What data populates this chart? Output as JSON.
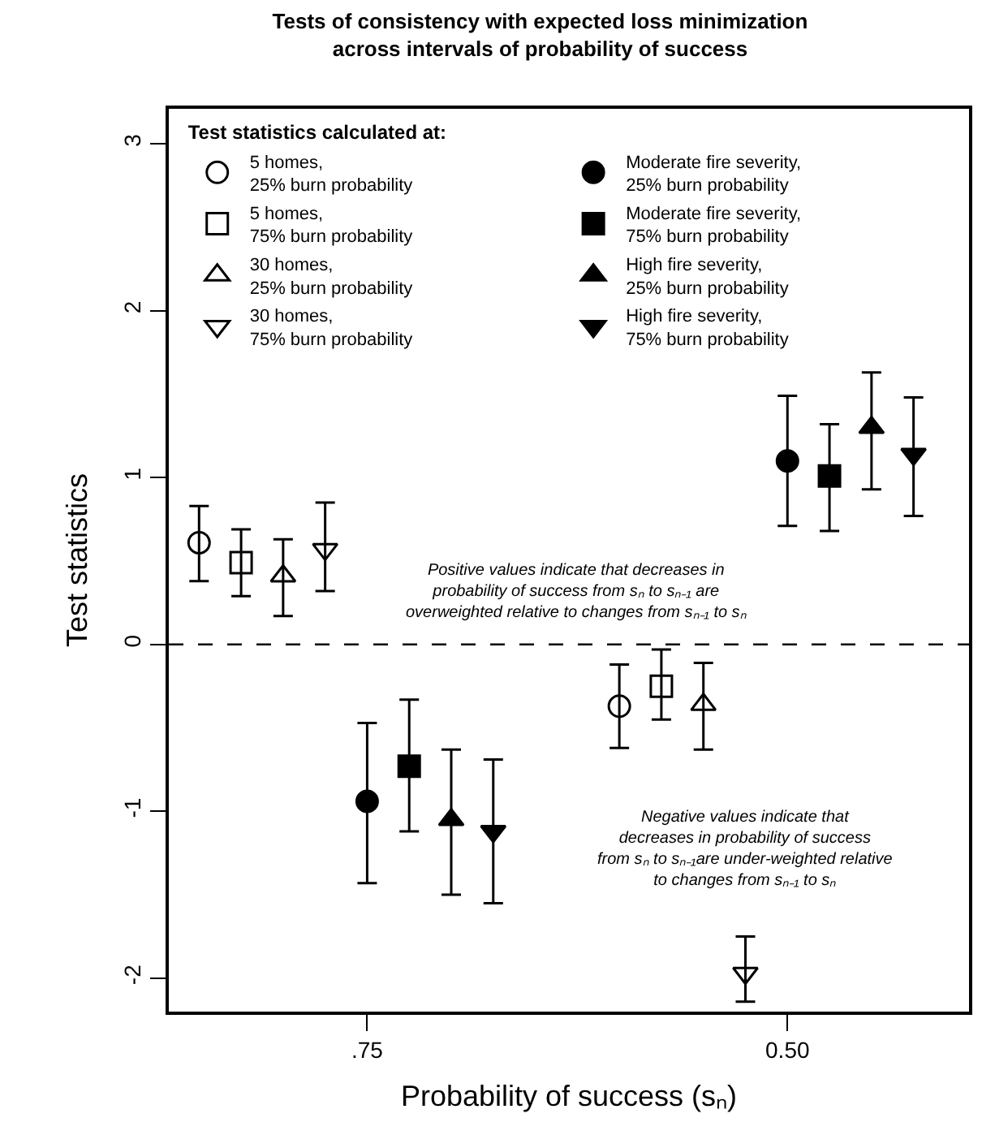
{
  "chart_data": {
    "type": "scatter",
    "title": "Tests of consistency with expected loss minimization\nacross intervals of probability of success",
    "xlabel": "Probability of success (sₙ)",
    "ylabel": "Test statistics",
    "legend_title": "Test statistics calculated at:",
    "xlim": [
      0.868,
      0.392
    ],
    "xticks": [
      {
        "value": 0.75,
        "label": ".75"
      },
      {
        "value": 0.5,
        "label": "0.50"
      }
    ],
    "ylim": [
      -2.2,
      3.21
    ],
    "yticks": [
      -2,
      -1,
      0,
      1,
      2,
      3
    ],
    "legend": "top",
    "ref_lines": [
      {
        "axis": "y",
        "value": 0,
        "label": null,
        "color": "#000000",
        "line_style": "dashed"
      }
    ],
    "annotations": [
      "Positive values indicate that decreases in\nprobability of success from sₙ to sₙ₋₁ are\noverweighted relative to changes from sₙ₋₁ to sₙ",
      "Negative values indicate that\ndecreases in probability of success\nfrom sₙ to sₙ₋₁are under-weighted relative\nto changes from sₙ₋₁ to sₙ"
    ],
    "series": [
      {
        "name": "5 homes,\n25% burn probability",
        "color": "#000000",
        "marker": "circle-open",
        "x": [
          0.85,
          0.6
        ],
        "values": [
          0.61,
          -0.37
        ],
        "errors": [
          [
            0.38,
            0.83
          ],
          [
            -0.62,
            -0.12
          ]
        ]
      },
      {
        "name": "Moderate fire severity,\n25% burn probability",
        "color": "#000000",
        "marker": "circle",
        "x": [
          0.75,
          0.5
        ],
        "values": [
          -0.94,
          1.1
        ],
        "errors": [
          [
            -1.43,
            -0.47
          ],
          [
            0.71,
            1.49
          ]
        ]
      },
      {
        "name": "5 homes,\n75% burn probability",
        "color": "#000000",
        "marker": "square-open",
        "x": [
          0.825,
          0.575
        ],
        "values": [
          0.49,
          -0.25
        ],
        "errors": [
          [
            0.29,
            0.69
          ],
          [
            -0.45,
            -0.03
          ]
        ]
      },
      {
        "name": "Moderate fire severity,\n75% burn probability",
        "color": "#000000",
        "marker": "square",
        "x": [
          0.725,
          0.475
        ],
        "values": [
          -0.73,
          1.01
        ],
        "errors": [
          [
            -1.12,
            -0.33
          ],
          [
            0.68,
            1.32
          ]
        ]
      },
      {
        "name": "30 homes,\n25% burn probability",
        "color": "#000000",
        "marker": "triangle-open",
        "x": [
          0.8,
          0.55
        ],
        "values": [
          0.41,
          -0.36
        ],
        "errors": [
          [
            0.17,
            0.63
          ],
          [
            -0.63,
            -0.11
          ]
        ]
      },
      {
        "name": "High fire severity,\n25% burn probability",
        "color": "#000000",
        "marker": "triangle",
        "x": [
          0.7,
          0.45
        ],
        "values": [
          -1.05,
          1.3
        ],
        "errors": [
          [
            -1.5,
            -0.63
          ],
          [
            0.93,
            1.63
          ]
        ]
      },
      {
        "name": "30 homes,\n75% burn probability",
        "color": "#000000",
        "marker": "triangle-down-open",
        "x": [
          0.775,
          0.525
        ],
        "values": [
          0.57,
          -1.97
        ],
        "errors": [
          [
            0.32,
            0.85
          ],
          [
            -2.14,
            -1.75
          ]
        ]
      },
      {
        "name": "High fire severity,\n75% burn probability",
        "color": "#000000",
        "marker": "triangle-down",
        "x": [
          0.675,
          0.425
        ],
        "values": [
          -1.12,
          1.14
        ],
        "errors": [
          [
            -1.55,
            -0.69
          ],
          [
            0.77,
            1.48
          ]
        ]
      }
    ]
  }
}
